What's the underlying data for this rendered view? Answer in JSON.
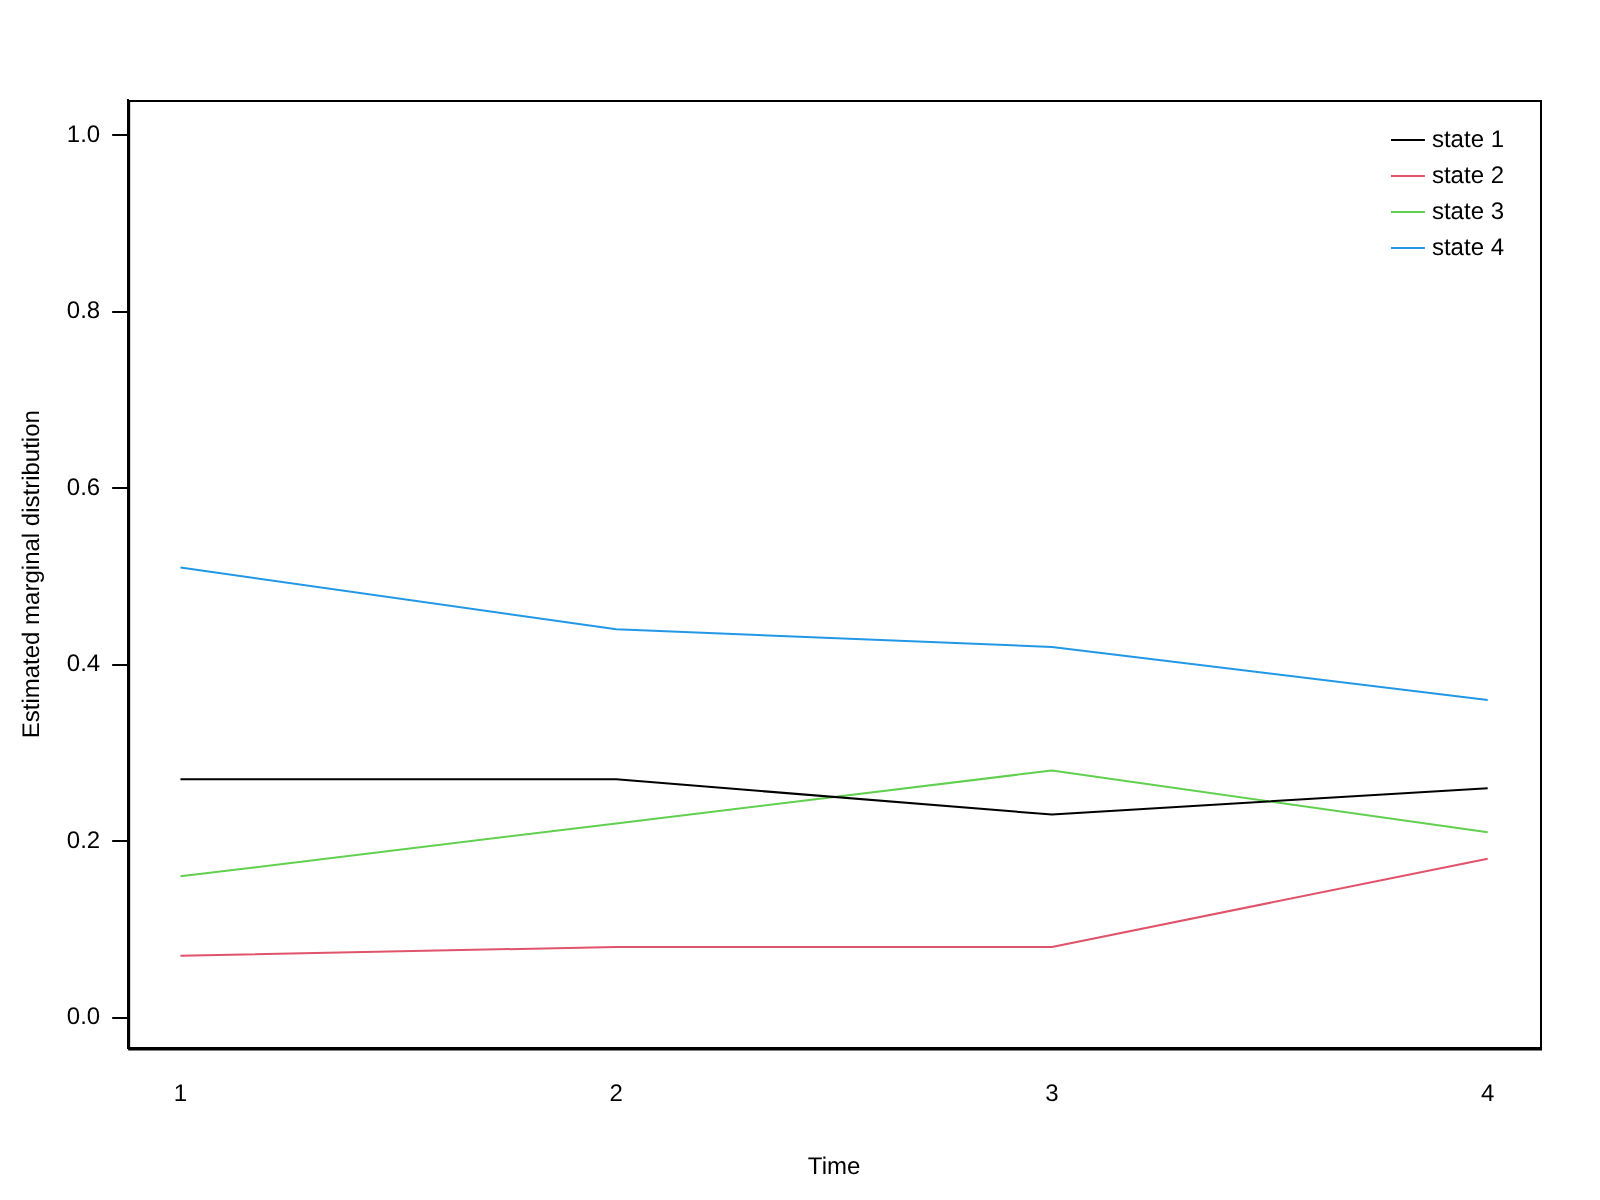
{
  "chart_data": {
    "type": "line",
    "xlabel": "Time",
    "ylabel": "Estimated marginal distribution",
    "x": [
      1,
      2,
      3,
      4
    ],
    "series": [
      {
        "name": "state 1",
        "color": "#000000",
        "values": [
          0.27,
          0.27,
          0.23,
          0.26
        ]
      },
      {
        "name": "state 2",
        "color": "#df536b",
        "values": [
          0.07,
          0.08,
          0.08,
          0.18
        ]
      },
      {
        "name": "state 3",
        "color": "#61d04f",
        "values": [
          0.16,
          0.22,
          0.28,
          0.21
        ]
      },
      {
        "name": "state 4",
        "color": "#2297e6",
        "values": [
          0.51,
          0.44,
          0.42,
          0.36
        ]
      }
    ],
    "xlim": [
      0.88,
      4.12
    ],
    "xticks": [
      1,
      2,
      3,
      4
    ],
    "ylim": [
      -0.035,
      1.04
    ],
    "yticks": [
      {
        "value": 0,
        "label": "0.0"
      },
      0.2,
      0.4,
      0.6,
      0.8,
      {
        "value": 1,
        "label": "1.0"
      }
    ],
    "grid": false,
    "legend": "top right",
    "marker": "none",
    "line_style": "solid"
  }
}
